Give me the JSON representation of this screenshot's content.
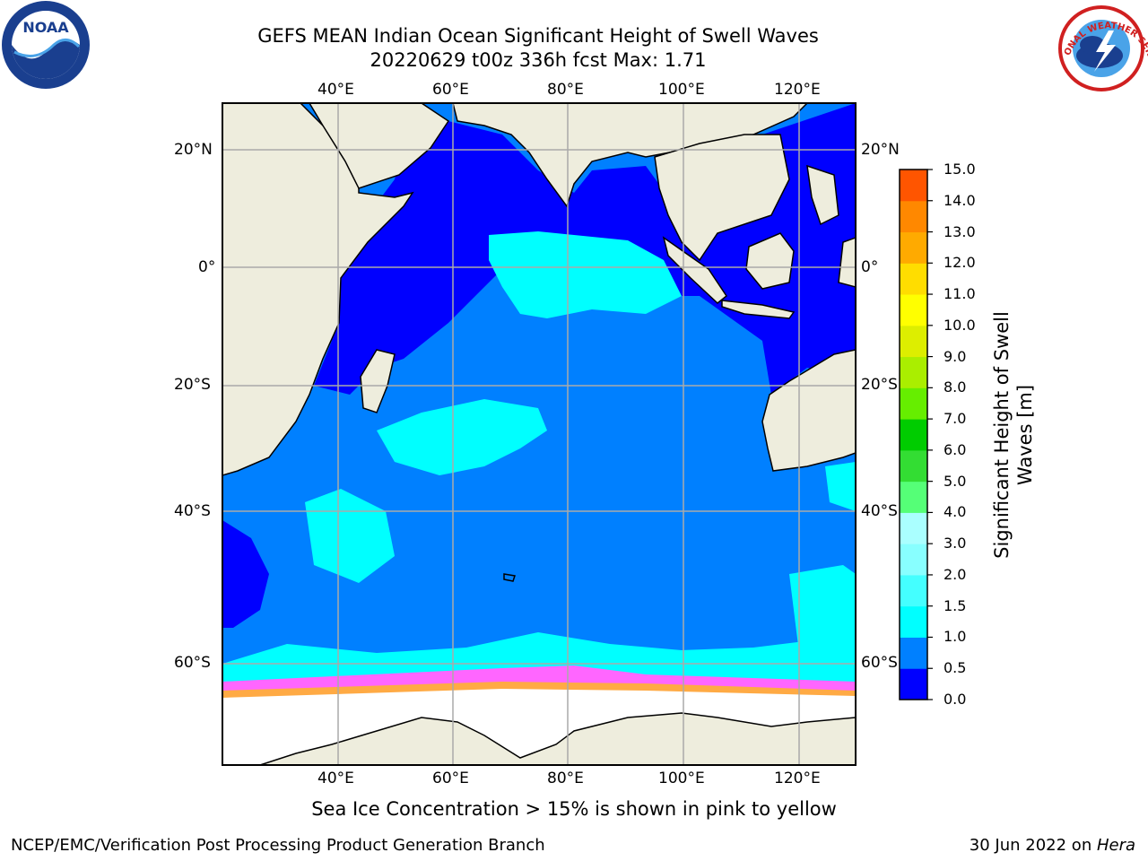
{
  "title": {
    "line1": "GEFS MEAN Indian Ocean Significant Height of Swell Waves",
    "line2": "20220629 t00z 336h fcst   Max: 1.71"
  },
  "map": {
    "lon_labels": [
      "40°E",
      "60°E",
      "80°E",
      "100°E",
      "120°E"
    ],
    "lat_labels": [
      "20°N",
      "0°",
      "20°S",
      "40°S",
      "60°S"
    ],
    "background_land": "#eeeddd",
    "ice_colors": [
      "#ff66ff",
      "#ffaa44",
      "#ffee66"
    ]
  },
  "colorbar": {
    "title_line1": "Significant Height of Swell",
    "title_line2": "Waves [m]",
    "ticks": [
      "0.0",
      "0.5",
      "1.0",
      "1.5",
      "2.0",
      "3.0",
      "4.0",
      "5.0",
      "6.0",
      "7.0",
      "8.0",
      "9.0",
      "10.0",
      "11.0",
      "12.0",
      "13.0",
      "14.0",
      "15.0"
    ],
    "colors": [
      "#0000ff",
      "#0080ff",
      "#00ffff",
      "#44ffff",
      "#88ffff",
      "#aaffff",
      "#55ff77",
      "#33dd33",
      "#00cc00",
      "#66ee00",
      "#aaee00",
      "#ddee00",
      "#ffff00",
      "#ffdd00",
      "#ffaa00",
      "#ff8800",
      "#ff5500",
      "#ff2200",
      "#ff0000"
    ]
  },
  "footer": {
    "note": "Sea Ice Concentration > 15% is shown in pink to yellow",
    "credit_left": "NCEP/EMC/Verification Post Processing Product Generation Branch",
    "credit_date": "30 Jun 2022 on ",
    "credit_host": "Hera"
  },
  "logos": {
    "left": "NOAA",
    "right": "NATIONAL WEATHER SERVICE"
  }
}
